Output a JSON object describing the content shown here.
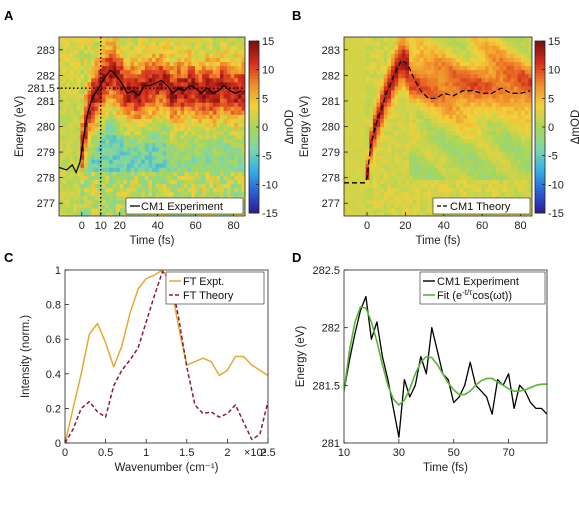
{
  "panels": {
    "A": {
      "label": "A"
    },
    "B": {
      "label": "B"
    },
    "C": {
      "label": "C"
    },
    "D": {
      "label": "D"
    }
  },
  "colors": {
    "experiment": "#000000",
    "theory": "#000000",
    "ft_expt": "#e6a833",
    "ft_theory": "#8b1a3a",
    "fit": "#5ab535",
    "colormap": [
      "#2b1a8e",
      "#2a5fd6",
      "#35b0e8",
      "#7fd6a8",
      "#a8d65a",
      "#f2d13a",
      "#f08a2a",
      "#d42d1e",
      "#7a0e0e"
    ]
  },
  "chart_data": [
    {
      "id": "A",
      "type": "heatmap",
      "xlabel": "Time (fs)",
      "ylabel": "Energy (eV)",
      "xlim": [
        -12,
        86
      ],
      "ylim": [
        276.5,
        283.5
      ],
      "xticks": [
        "0",
        "10",
        "20",
        "40",
        "60",
        "80"
      ],
      "xtick_values": [
        0,
        10,
        20,
        40,
        60,
        80
      ],
      "yticks": [
        "277",
        "278",
        "279",
        "280",
        "281",
        "281.5",
        "282",
        "283"
      ],
      "ytick_values": [
        277,
        278,
        279,
        280,
        281,
        281.5,
        282,
        283
      ],
      "colorbar": {
        "label": "ΔmOD",
        "range": [
          -15,
          15
        ],
        "ticks": [
          "-15",
          "-10",
          "-5",
          "0",
          "5",
          "10",
          "15"
        ],
        "tick_values": [
          -15,
          -10,
          -5,
          0,
          5,
          10,
          15
        ]
      },
      "reference_lines": {
        "vertical_x": 10,
        "horizontal_y": 281.5,
        "style": "dotted"
      },
      "legend": {
        "position": "bottom-right",
        "entries": [
          "CM1 Experiment"
        ]
      },
      "series": [
        {
          "name": "CM1 Experiment",
          "style": "solid",
          "x": [
            -12,
            -8,
            -5,
            -3,
            -1,
            1,
            3,
            5,
            7,
            9,
            11,
            13,
            15,
            17,
            19,
            21,
            24,
            27,
            30,
            33,
            36,
            39,
            42,
            45,
            48,
            51,
            54,
            57,
            60,
            63,
            66,
            69,
            72,
            75,
            78,
            81,
            84
          ],
          "y": [
            278.4,
            278.3,
            278.5,
            278.2,
            278.6,
            279.6,
            280.5,
            281.0,
            281.3,
            281.5,
            281.8,
            282.0,
            282.2,
            282.1,
            281.9,
            281.7,
            281.3,
            281.4,
            281.2,
            281.6,
            281.6,
            281.7,
            281.8,
            281.6,
            281.3,
            281.5,
            281.4,
            281.6,
            281.5,
            281.3,
            281.5,
            281.3,
            281.4,
            281.6,
            281.4,
            281.3,
            281.4
          ]
        }
      ]
    },
    {
      "id": "B",
      "type": "heatmap",
      "xlabel": "Time (fs)",
      "ylabel": "Energy (eV)",
      "xlim": [
        -12,
        86
      ],
      "ylim": [
        276.5,
        283.5
      ],
      "xticks": [
        "0",
        "20",
        "40",
        "60",
        "80"
      ],
      "xtick_values": [
        0,
        20,
        40,
        60,
        80
      ],
      "yticks": [
        "277",
        "278",
        "279",
        "280",
        "281",
        "282",
        "283"
      ],
      "ytick_values": [
        277,
        278,
        279,
        280,
        281,
        282,
        283
      ],
      "colorbar": {
        "label": "ΔmOD",
        "range": [
          -15,
          15
        ],
        "ticks": [
          "-15",
          "-10",
          "-5",
          "0",
          "5",
          "10",
          "15"
        ],
        "tick_values": [
          -15,
          -10,
          -5,
          0,
          5,
          10,
          15
        ]
      },
      "legend": {
        "position": "bottom-right",
        "entries": [
          "CM1 Theory"
        ]
      },
      "series": [
        {
          "name": "CM1 Theory",
          "style": "dashed",
          "x": [
            -12,
            -5,
            -1,
            0,
            2,
            4,
            6,
            8,
            10,
            12,
            14,
            16,
            18,
            20,
            22,
            25,
            28,
            32,
            36,
            40,
            45,
            50,
            55,
            60,
            65,
            70,
            75,
            80,
            85
          ],
          "y": [
            277.8,
            277.8,
            277.8,
            278.0,
            279.3,
            279.9,
            280.4,
            280.8,
            281.3,
            281.6,
            282.0,
            282.3,
            282.6,
            282.5,
            282.3,
            281.8,
            281.4,
            281.1,
            281.1,
            281.3,
            281.2,
            281.4,
            281.4,
            281.3,
            281.3,
            281.5,
            281.3,
            281.3,
            281.4
          ]
        }
      ]
    },
    {
      "id": "C",
      "type": "line",
      "xlabel": "Wavenumber (cm⁻¹)",
      "ylabel": "Intensity (norm.)",
      "x_multiplier": "×10³",
      "xlim": [
        0,
        2.5
      ],
      "ylim": [
        0,
        1
      ],
      "xticks": [
        "0",
        "0.5",
        "1",
        "1.5",
        "2",
        "2.5"
      ],
      "xtick_values": [
        0,
        0.5,
        1,
        1.5,
        2,
        2.5
      ],
      "yticks": [
        "0",
        "0.2",
        "0.4",
        "0.6",
        "0.8",
        "1"
      ],
      "ytick_values": [
        0,
        0.2,
        0.4,
        0.6,
        0.8,
        1
      ],
      "legend": {
        "position": "top-right",
        "entries": [
          "FT Expt.",
          "FT Theory"
        ]
      },
      "series": [
        {
          "name": "FT Expt.",
          "style": "solid",
          "x": [
            0,
            0.1,
            0.2,
            0.3,
            0.4,
            0.5,
            0.6,
            0.7,
            0.8,
            0.9,
            1.0,
            1.1,
            1.2,
            1.3,
            1.4,
            1.5,
            1.6,
            1.7,
            1.8,
            1.9,
            2.0,
            2.1,
            2.2,
            2.3,
            2.4,
            2.5
          ],
          "y": [
            0.0,
            0.2,
            0.4,
            0.63,
            0.69,
            0.58,
            0.44,
            0.56,
            0.75,
            0.89,
            0.95,
            0.97,
            1.0,
            0.92,
            0.67,
            0.45,
            0.47,
            0.49,
            0.47,
            0.39,
            0.42,
            0.5,
            0.5,
            0.45,
            0.42,
            0.39
          ]
        },
        {
          "name": "FT Theory",
          "style": "dashed",
          "x": [
            0,
            0.1,
            0.2,
            0.3,
            0.4,
            0.5,
            0.6,
            0.7,
            0.8,
            0.9,
            1.0,
            1.1,
            1.2,
            1.3,
            1.4,
            1.5,
            1.6,
            1.7,
            1.8,
            1.9,
            2.0,
            2.1,
            2.2,
            2.3,
            2.4,
            2.5
          ],
          "y": [
            0.0,
            0.08,
            0.2,
            0.24,
            0.18,
            0.15,
            0.33,
            0.42,
            0.48,
            0.55,
            0.7,
            0.85,
            0.99,
            0.96,
            0.72,
            0.44,
            0.22,
            0.17,
            0.18,
            0.15,
            0.17,
            0.22,
            0.12,
            0.02,
            0.05,
            0.24
          ]
        }
      ]
    },
    {
      "id": "D",
      "type": "line",
      "xlabel": "Time (fs)",
      "ylabel": "Energy (eV)",
      "xlim": [
        10,
        84
      ],
      "ylim": [
        281,
        282.5
      ],
      "xticks": [
        "10",
        "30",
        "50",
        "70"
      ],
      "xtick_values": [
        10,
        30,
        50,
        70
      ],
      "yticks": [
        "281",
        "281.5",
        "282",
        "282.5"
      ],
      "ytick_values": [
        281,
        281.5,
        282,
        282.5
      ],
      "legend": {
        "position": "top-right",
        "entries": [
          "CM1 Experiment",
          "Fit (e^(-t/τ)cos(ωt))"
        ]
      },
      "series": [
        {
          "name": "CM1 Experiment",
          "style": "solid",
          "x": [
            10,
            12,
            14,
            16,
            18,
            20,
            22,
            24,
            26,
            28,
            30,
            32,
            34,
            36,
            38,
            40,
            42,
            44,
            46,
            48,
            50,
            52,
            54,
            56,
            58,
            60,
            62,
            64,
            66,
            68,
            70,
            72,
            74,
            76,
            78,
            80,
            82,
            84
          ],
          "y": [
            281.45,
            281.72,
            281.95,
            282.15,
            282.27,
            281.9,
            282.05,
            281.75,
            281.55,
            281.3,
            281.05,
            281.55,
            281.4,
            281.5,
            281.75,
            281.6,
            282.0,
            281.8,
            281.6,
            281.55,
            281.35,
            281.4,
            281.5,
            281.7,
            281.5,
            281.45,
            281.4,
            281.25,
            281.55,
            281.5,
            281.6,
            281.3,
            281.5,
            281.45,
            281.35,
            281.3,
            281.3,
            281.25
          ]
        },
        {
          "name": "Fit (e^(-t/τ)cos(ωt))",
          "style": "solid",
          "x": [
            10,
            12,
            14,
            16,
            18,
            20,
            22,
            24,
            26,
            28,
            30,
            32,
            34,
            36,
            38,
            40,
            42,
            44,
            46,
            48,
            50,
            52,
            54,
            56,
            58,
            60,
            62,
            64,
            66,
            68,
            70,
            72,
            74,
            76,
            78,
            80,
            82,
            84
          ],
          "y": [
            281.45,
            281.8,
            282.05,
            282.18,
            282.17,
            282.05,
            281.88,
            281.68,
            281.5,
            281.38,
            281.33,
            281.37,
            281.47,
            281.6,
            281.7,
            281.75,
            281.74,
            281.68,
            281.6,
            281.52,
            281.46,
            281.42,
            281.42,
            281.45,
            281.5,
            281.54,
            281.56,
            281.56,
            281.53,
            281.5,
            281.47,
            281.45,
            281.45,
            281.46,
            281.48,
            281.5,
            281.51,
            281.51
          ]
        }
      ]
    }
  ]
}
